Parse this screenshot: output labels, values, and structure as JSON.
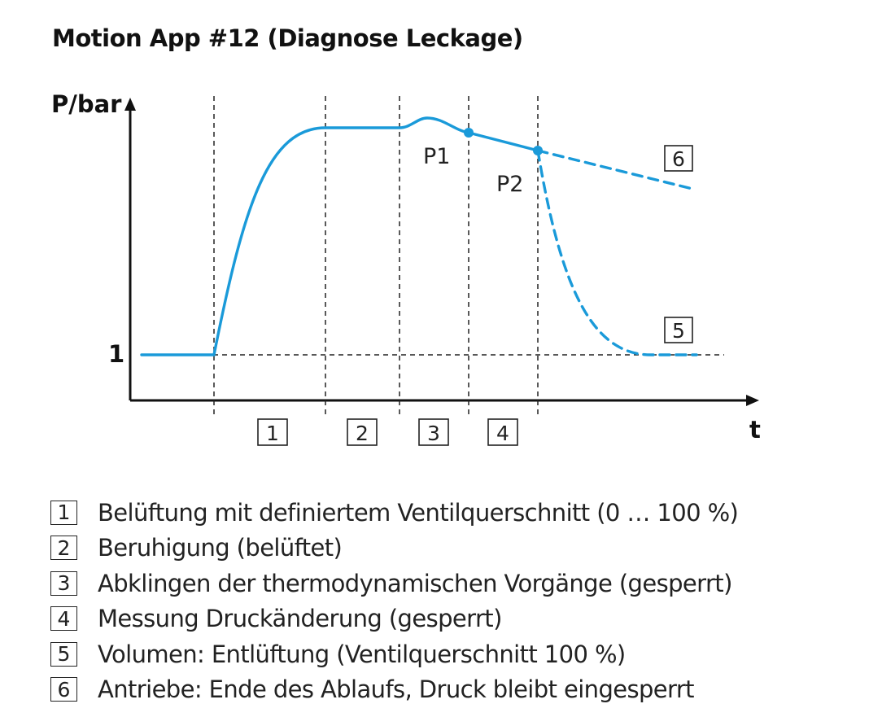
{
  "title": "Motion App #12 (Diagnose Leckage)",
  "axes": {
    "y_label": "P/bar",
    "x_label": "t",
    "y_baseline_label": "1"
  },
  "points": {
    "p1": "P1",
    "p2": "P2"
  },
  "phase_boxes": [
    "1",
    "2",
    "3",
    "4"
  ],
  "curve_boxes": {
    "five": "5",
    "six": "6"
  },
  "legend": [
    {
      "num": "1",
      "text": "Belüftung mit definiertem Ventilquerschnitt (0 … 100 %)"
    },
    {
      "num": "2",
      "text": "Beruhigung (belüftet)"
    },
    {
      "num": "3",
      "text": "Abklingen der thermodynamischen Vorgänge (gesperrt)"
    },
    {
      "num": "4",
      "text": "Messung Druckänderung (gesperrt)"
    },
    {
      "num": "5",
      "text": "Volumen: Entlüftung (Ventilquerschnitt 100 %)"
    },
    {
      "num": "6",
      "text": "Antriebe: Ende des Ablaufs, Druck bleibt eingesperrt"
    }
  ],
  "colors": {
    "curve": "#1a9ad9",
    "axis": "#111111",
    "dashed_guides": "#222222"
  }
}
